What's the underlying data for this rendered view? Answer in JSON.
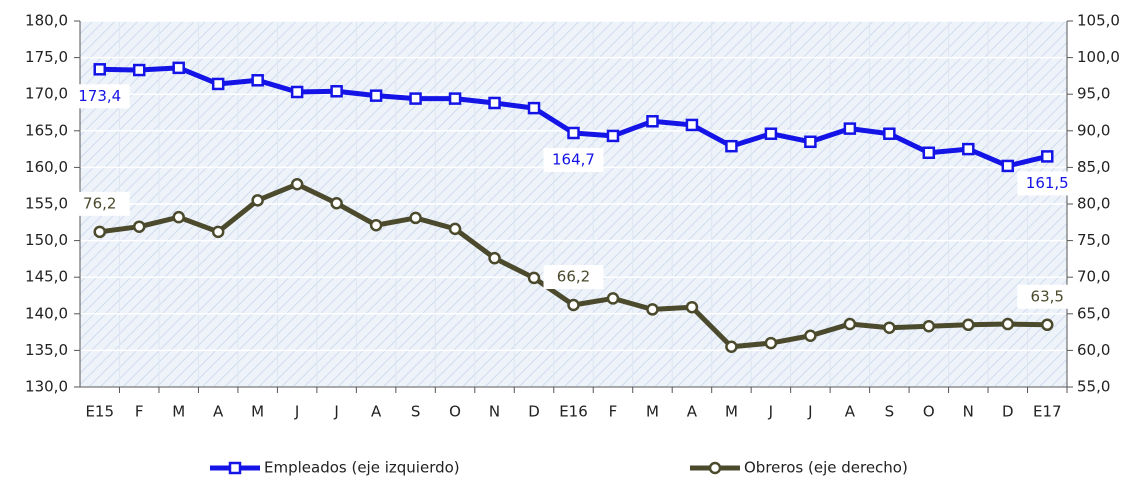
{
  "chart_data": {
    "type": "line",
    "categories": [
      "E15",
      "F",
      "M",
      "A",
      "M",
      "J",
      "J",
      "A",
      "S",
      "O",
      "N",
      "D",
      "E16",
      "F",
      "M",
      "A",
      "M",
      "J",
      "J",
      "A",
      "S",
      "O",
      "N",
      "D",
      "E17"
    ],
    "series": [
      {
        "name": "Empleados (eje izquierdo)",
        "color": "#1414e6",
        "marker": "square",
        "axis": "y",
        "values": [
          173.4,
          173.3,
          173.6,
          171.4,
          171.9,
          170.3,
          170.4,
          169.8,
          169.4,
          169.4,
          168.8,
          168.1,
          164.7,
          164.3,
          166.3,
          165.8,
          162.9,
          164.6,
          163.5,
          165.3,
          164.6,
          162.0,
          162.5,
          160.2,
          161.5
        ],
        "value_labels": [
          "173,4",
          null,
          null,
          null,
          null,
          null,
          null,
          null,
          null,
          null,
          null,
          null,
          "164,7",
          null,
          null,
          null,
          null,
          null,
          null,
          null,
          null,
          null,
          null,
          null,
          "161,5"
        ]
      },
      {
        "name": "Obreros (eje derecho)",
        "color": "#4b4a2c",
        "marker": "circle",
        "axis": "y2",
        "values": [
          76.2,
          76.9,
          78.2,
          76.2,
          80.5,
          82.7,
          80.1,
          77.1,
          78.1,
          76.6,
          72.6,
          69.9,
          66.2,
          67.1,
          65.6,
          65.9,
          60.5,
          61.0,
          62.0,
          63.6,
          63.1,
          63.3,
          63.5,
          63.6,
          63.5
        ],
        "value_labels": [
          "76,2",
          null,
          null,
          null,
          null,
          null,
          null,
          null,
          null,
          null,
          null,
          null,
          "66,2",
          null,
          null,
          null,
          null,
          null,
          null,
          null,
          null,
          null,
          null,
          null,
          "63,5"
        ]
      }
    ],
    "ylim": [
      130,
      180
    ],
    "yticks": [
      {
        "value": 130,
        "label": "130,0"
      },
      {
        "value": 135,
        "label": "135,0"
      },
      {
        "value": 140,
        "label": "140,0"
      },
      {
        "value": 145,
        "label": "145,0"
      },
      {
        "value": 150,
        "label": "150,0"
      },
      {
        "value": 155,
        "label": "155,0"
      },
      {
        "value": 160,
        "label": "160,0"
      },
      {
        "value": 165,
        "label": "165,0"
      },
      {
        "value": 170,
        "label": "170,0"
      },
      {
        "value": 175,
        "label": "175,0"
      },
      {
        "value": 180,
        "label": "180,0"
      }
    ],
    "y2lim": [
      55,
      105
    ],
    "y2ticks": [
      {
        "value": 55,
        "label": "55,0"
      },
      {
        "value": 60,
        "label": "60,0"
      },
      {
        "value": 65,
        "label": "65,0"
      },
      {
        "value": 70,
        "label": "70,0"
      },
      {
        "value": 75,
        "label": "75,0"
      },
      {
        "value": 80,
        "label": "80,0"
      },
      {
        "value": 85,
        "label": "85,0"
      },
      {
        "value": 90,
        "label": "90,0"
      },
      {
        "value": 95,
        "label": "95,0"
      },
      {
        "value": 100,
        "label": "100,0"
      },
      {
        "value": 105,
        "label": "105,0"
      }
    ],
    "grid": true,
    "legend": "bottom"
  }
}
